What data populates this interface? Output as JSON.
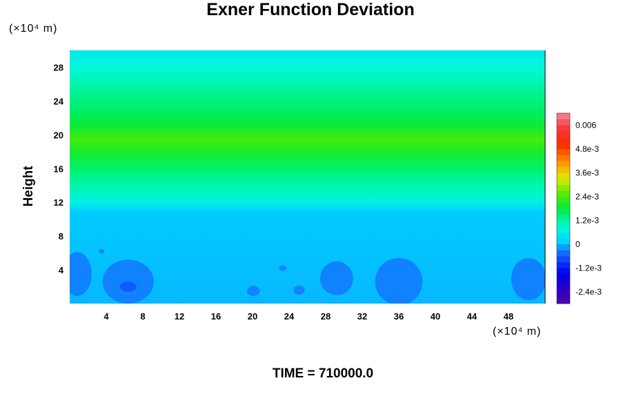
{
  "chart_data": {
    "type": "heatmap",
    "title": "Exner Function Deviation",
    "ylabel": "Height",
    "x_unit": "(×10⁴ m)",
    "y_unit": "(×10⁴ m)",
    "footer": "TIME = 710000.0",
    "xlim": [
      0,
      52
    ],
    "ylim": [
      0,
      30
    ],
    "x_ticks": [
      4,
      8,
      12,
      16,
      20,
      24,
      28,
      32,
      36,
      40,
      44,
      48
    ],
    "y_ticks": [
      4,
      8,
      12,
      16,
      20,
      24,
      28
    ],
    "colorbar": {
      "range": [
        -0.003,
        0.0066
      ],
      "levels": 32,
      "tick_values": [
        0.006,
        0.0048,
        0.0036,
        0.0024,
        0.0012,
        0,
        -0.0012,
        -0.0024
      ],
      "tick_labels": [
        "0.006",
        "4.8e-3",
        "3.6e-3",
        "2.4e-3",
        "1.2e-3",
        "0",
        "-1.2e-3",
        "-2.4e-3"
      ]
    },
    "vertical_profile": [
      {
        "height": 0,
        "value": 0.0
      },
      {
        "height": 10.8,
        "value": 0.0001
      },
      {
        "height": 11.5,
        "value": 0.0004
      },
      {
        "height": 12.2,
        "value": 0.0007
      },
      {
        "height": 14,
        "value": 0.0011
      },
      {
        "height": 16,
        "value": 0.0015
      },
      {
        "height": 18,
        "value": 0.002
      },
      {
        "height": 19.4,
        "value": 0.0024
      },
      {
        "height": 21,
        "value": 0.0019
      },
      {
        "height": 22.5,
        "value": 0.0016
      },
      {
        "height": 24,
        "value": 0.0014
      },
      {
        "height": 26,
        "value": 0.0011
      },
      {
        "height": 28,
        "value": 0.0008
      },
      {
        "height": 30,
        "value": 0.0005
      }
    ],
    "anomalies": [
      {
        "x": 0.8,
        "y": 3.5,
        "rx": 1.6,
        "ry": 2.6,
        "value": -0.0003
      },
      {
        "x": 6.4,
        "y": 2.6,
        "rx": 2.8,
        "ry": 2.6,
        "value": -0.0003
      },
      {
        "x": 6.4,
        "y": 2.0,
        "rx": 0.9,
        "ry": 0.6,
        "value": -0.0006
      },
      {
        "x": 3.5,
        "y": 6.2,
        "rx": 0.3,
        "ry": 0.25,
        "value": -0.0003
      },
      {
        "x": 20.1,
        "y": 1.5,
        "rx": 0.7,
        "ry": 0.6,
        "value": -0.0003
      },
      {
        "x": 23.3,
        "y": 4.2,
        "rx": 0.4,
        "ry": 0.3,
        "value": -0.0003
      },
      {
        "x": 25.1,
        "y": 1.6,
        "rx": 0.6,
        "ry": 0.55,
        "value": -0.0003
      },
      {
        "x": 29.2,
        "y": 3.0,
        "rx": 1.8,
        "ry": 2.0,
        "value": -0.0003
      },
      {
        "x": 36.0,
        "y": 2.6,
        "rx": 2.6,
        "ry": 2.8,
        "value": -0.0003
      },
      {
        "x": 50.2,
        "y": 2.9,
        "rx": 1.9,
        "ry": 2.5,
        "value": -0.0003
      }
    ]
  }
}
